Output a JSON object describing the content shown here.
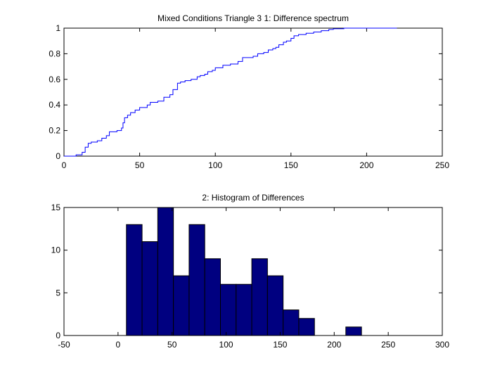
{
  "chart_data": [
    {
      "type": "line",
      "title": "Mixed Conditions Triangle 3  1: Difference spectrum",
      "xlabel": "",
      "ylabel": "",
      "xlim": [
        0,
        250
      ],
      "ylim": [
        0,
        1
      ],
      "xticks": [
        "0",
        "50",
        "100",
        "150",
        "200",
        "250"
      ],
      "yticks": [
        "0",
        "0.2",
        "0.4",
        "0.6",
        "0.8",
        "1"
      ],
      "grid": false,
      "line_color": "#0000ff",
      "series": [
        {
          "x": [
            0,
            8,
            12,
            14,
            16,
            18,
            22,
            25,
            28,
            30,
            35,
            38,
            39,
            40,
            42,
            44,
            47,
            50,
            55,
            57,
            62,
            66,
            70,
            72,
            75,
            77,
            80,
            84,
            88,
            90,
            93,
            95,
            98,
            100,
            105,
            110,
            115,
            118,
            125,
            128,
            132,
            135,
            138,
            140,
            142,
            145,
            147,
            150,
            152,
            155,
            160,
            165,
            170,
            175,
            178,
            185,
            190,
            200,
            220
          ],
          "y": [
            0.0,
            0.01,
            0.03,
            0.07,
            0.1,
            0.11,
            0.12,
            0.14,
            0.16,
            0.19,
            0.2,
            0.22,
            0.26,
            0.3,
            0.32,
            0.34,
            0.36,
            0.38,
            0.4,
            0.42,
            0.43,
            0.46,
            0.48,
            0.52,
            0.57,
            0.58,
            0.59,
            0.6,
            0.62,
            0.63,
            0.64,
            0.66,
            0.67,
            0.69,
            0.71,
            0.72,
            0.74,
            0.77,
            0.78,
            0.8,
            0.81,
            0.83,
            0.84,
            0.85,
            0.87,
            0.89,
            0.9,
            0.92,
            0.94,
            0.95,
            0.96,
            0.97,
            0.98,
            0.99,
            0.995,
            1.0,
            1.0,
            1.0,
            1.0
          ]
        }
      ]
    },
    {
      "type": "bar",
      "title": "2: Histogram of Differences",
      "xlabel": "",
      "ylabel": "",
      "xlim": [
        -50,
        300
      ],
      "ylim": [
        0,
        15
      ],
      "xticks": [
        "-50",
        "0",
        "50",
        "100",
        "150",
        "200",
        "250",
        "300"
      ],
      "yticks": [
        "0",
        "5",
        "10",
        "15"
      ],
      "grid": false,
      "bar_color": "#000080",
      "bin_width": 14.5,
      "bin_centers": [
        15,
        29.5,
        44,
        58.5,
        73,
        87.5,
        102,
        116.5,
        131,
        145.5,
        160,
        174.5,
        189,
        203.5,
        218,
        232.5
      ],
      "values": [
        13,
        11,
        15,
        7,
        13,
        9,
        6,
        6,
        9,
        7,
        3,
        2,
        0,
        0,
        1,
        0
      ]
    }
  ]
}
